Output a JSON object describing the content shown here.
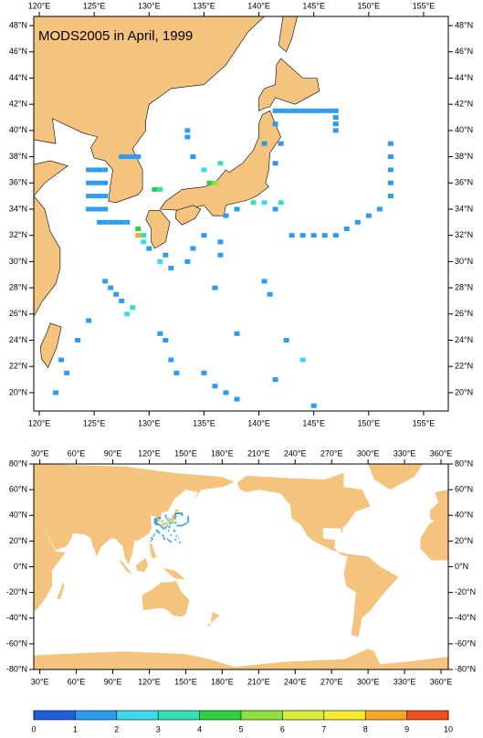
{
  "chart_data": {
    "type": "map",
    "title": "MODS2005 in April, 1999",
    "maps": [
      {
        "xlim": [
          119.5,
          157.25
        ],
        "ylim": [
          18.6,
          48.7
        ],
        "xticks": [
          {
            "value": 120,
            "label": "120°E"
          },
          {
            "value": 125,
            "label": "125°E"
          },
          {
            "value": 130,
            "label": "130°E"
          },
          {
            "value": 135,
            "label": "135°E"
          },
          {
            "value": 140,
            "label": "140°E"
          },
          {
            "value": 145,
            "label": "145°E"
          },
          {
            "value": 150,
            "label": "150°E"
          },
          {
            "value": 155,
            "label": "155°E"
          }
        ],
        "yticks": [
          {
            "value": 20,
            "label": "20°N"
          },
          {
            "value": 22,
            "label": "22°N"
          },
          {
            "value": 24,
            "label": "24°N"
          },
          {
            "value": 26,
            "label": "26°N"
          },
          {
            "value": 28,
            "label": "28°N"
          },
          {
            "value": 30,
            "label": "30°N"
          },
          {
            "value": 32,
            "label": "32°N"
          },
          {
            "value": 34,
            "label": "34°N"
          },
          {
            "value": 36,
            "label": "36°N"
          },
          {
            "value": 38,
            "label": "38°N"
          },
          {
            "value": 40,
            "label": "40°N"
          },
          {
            "value": 42,
            "label": "42°N"
          },
          {
            "value": 44,
            "label": "44°N"
          },
          {
            "value": 46,
            "label": "46°N"
          },
          {
            "value": 48,
            "label": "48°N"
          }
        ]
      },
      {
        "xlim": [
          25,
          366
        ],
        "ylim": [
          -80,
          80
        ],
        "xticks": [
          {
            "value": 30,
            "label": "30°E"
          },
          {
            "value": 60,
            "label": "60°E"
          },
          {
            "value": 90,
            "label": "90°E"
          },
          {
            "value": 120,
            "label": "120°E"
          },
          {
            "value": 150,
            "label": "150°E"
          },
          {
            "value": 180,
            "label": "180°E"
          },
          {
            "value": 210,
            "label": "210°E"
          },
          {
            "value": 240,
            "label": "240°E"
          },
          {
            "value": 270,
            "label": "270°E"
          },
          {
            "value": 300,
            "label": "300°E"
          },
          {
            "value": 330,
            "label": "330°E"
          },
          {
            "value": 360,
            "label": "360°E"
          }
        ],
        "yticks": [
          {
            "value": -80,
            "label": "-80°N"
          },
          {
            "value": -60,
            "label": "-60°N"
          },
          {
            "value": -40,
            "label": "-40°N"
          },
          {
            "value": -20,
            "label": "-20°N"
          },
          {
            "value": 0,
            "label": "0°N"
          },
          {
            "value": 20,
            "label": "20°N"
          },
          {
            "value": 40,
            "label": "40°N"
          },
          {
            "value": 60,
            "label": "60°N"
          },
          {
            "value": 80,
            "label": "80°N"
          }
        ]
      }
    ],
    "cells": [
      [
        141.5,
        41.5,
        1
      ],
      [
        142,
        41.5,
        1
      ],
      [
        142.5,
        41.5,
        1
      ],
      [
        143,
        41.5,
        1
      ],
      [
        143.5,
        41.5,
        1
      ],
      [
        144,
        41.5,
        1
      ],
      [
        144.5,
        41.5,
        1
      ],
      [
        145,
        41.5,
        1
      ],
      [
        145.5,
        41.5,
        1
      ],
      [
        146,
        41.5,
        1
      ],
      [
        146.5,
        41.5,
        1
      ],
      [
        147,
        41.5,
        1
      ],
      [
        147,
        41,
        1
      ],
      [
        147,
        40.5,
        1
      ],
      [
        147,
        40,
        1
      ],
      [
        124.5,
        37,
        1
      ],
      [
        125,
        37,
        1
      ],
      [
        125.5,
        37,
        1
      ],
      [
        126,
        37,
        1
      ],
      [
        124.5,
        36,
        1
      ],
      [
        125,
        36,
        1
      ],
      [
        125.5,
        36,
        1
      ],
      [
        126,
        36,
        1
      ],
      [
        124.5,
        35,
        1
      ],
      [
        125,
        35,
        1
      ],
      [
        125.5,
        35,
        1
      ],
      [
        126,
        35,
        1
      ],
      [
        124.5,
        34,
        1
      ],
      [
        125,
        34,
        1
      ],
      [
        125.5,
        34,
        1
      ],
      [
        126,
        34,
        1
      ],
      [
        125.5,
        33,
        1
      ],
      [
        126,
        33,
        1
      ],
      [
        126.5,
        33,
        1
      ],
      [
        127,
        33,
        1
      ],
      [
        127.5,
        33,
        1
      ],
      [
        128,
        33,
        1
      ],
      [
        127.5,
        38,
        1
      ],
      [
        128,
        38,
        1
      ],
      [
        128.5,
        38,
        1
      ],
      [
        129,
        38,
        1
      ],
      [
        130.5,
        35.5,
        4
      ],
      [
        131,
        35.5,
        3
      ],
      [
        135.5,
        36,
        4
      ],
      [
        136,
        36,
        5
      ],
      [
        135,
        37,
        2
      ],
      [
        136.5,
        37.5,
        3
      ],
      [
        133.5,
        39.5,
        1
      ],
      [
        133.5,
        40,
        1
      ],
      [
        134,
        38,
        1
      ],
      [
        129,
        32,
        8
      ],
      [
        129,
        32.5,
        4
      ],
      [
        129.5,
        32,
        3
      ],
      [
        129.5,
        31.5,
        2
      ],
      [
        130,
        31,
        1
      ],
      [
        131,
        30,
        2
      ],
      [
        131.5,
        30.5,
        1
      ],
      [
        132,
        29.5,
        1
      ],
      [
        137,
        33.5,
        1
      ],
      [
        138,
        34,
        1
      ],
      [
        139.5,
        34.5,
        3
      ],
      [
        140.5,
        34.5,
        2
      ],
      [
        141.5,
        34,
        1
      ],
      [
        142,
        34.5,
        3
      ],
      [
        143,
        32,
        1
      ],
      [
        144,
        32,
        1
      ],
      [
        145,
        32,
        1
      ],
      [
        146,
        32,
        1
      ],
      [
        147,
        32,
        1
      ],
      [
        148,
        32.5,
        1
      ],
      [
        149,
        33,
        1
      ],
      [
        150,
        33.5,
        1
      ],
      [
        151,
        34,
        1
      ],
      [
        152,
        35,
        1
      ],
      [
        152,
        36,
        1
      ],
      [
        152,
        37,
        1
      ],
      [
        152,
        38,
        1
      ],
      [
        152,
        39,
        1
      ],
      [
        141.5,
        37.5,
        1
      ],
      [
        142,
        39,
        1
      ],
      [
        141.5,
        40.5,
        1
      ],
      [
        140.5,
        39,
        1
      ],
      [
        126,
        28.5,
        1
      ],
      [
        126.5,
        28,
        1
      ],
      [
        127,
        27.5,
        1
      ],
      [
        127.5,
        27,
        1
      ],
      [
        128.5,
        26.5,
        3
      ],
      [
        128,
        26,
        2
      ],
      [
        124.5,
        25.5,
        1
      ],
      [
        123.5,
        24,
        1
      ],
      [
        122,
        22.5,
        1
      ],
      [
        122.5,
        21.5,
        1
      ],
      [
        121.5,
        20,
        1
      ],
      [
        131,
        24.5,
        1
      ],
      [
        131.5,
        24,
        1
      ],
      [
        132,
        22.5,
        1
      ],
      [
        132.5,
        21.5,
        1
      ],
      [
        135,
        21.5,
        1
      ],
      [
        136,
        20.5,
        1
      ],
      [
        137,
        20,
        1
      ],
      [
        138,
        19.5,
        1
      ],
      [
        141.5,
        21,
        1
      ],
      [
        144,
        22.5,
        2
      ],
      [
        145,
        19,
        1
      ],
      [
        142.5,
        24,
        1
      ],
      [
        140.5,
        28.5,
        1
      ],
      [
        141,
        27.5,
        1
      ],
      [
        138,
        24.5,
        1
      ],
      [
        133.5,
        30,
        1
      ],
      [
        136,
        28,
        1
      ],
      [
        134,
        31,
        1
      ],
      [
        136.5,
        31.5,
        1
      ],
      [
        136.5,
        30.5,
        1
      ],
      [
        135,
        32,
        1
      ]
    ],
    "colorbar": {
      "ticks": [
        0,
        1,
        2,
        3,
        4,
        5,
        6,
        7,
        8,
        9,
        10
      ],
      "colors": [
        "#1f5fd8",
        "#2b9cf0",
        "#3fd8ec",
        "#34e0b4",
        "#2fd040",
        "#8ee040",
        "#d8ee3c",
        "#f8ec30",
        "#f8a828",
        "#f0501c"
      ]
    }
  }
}
